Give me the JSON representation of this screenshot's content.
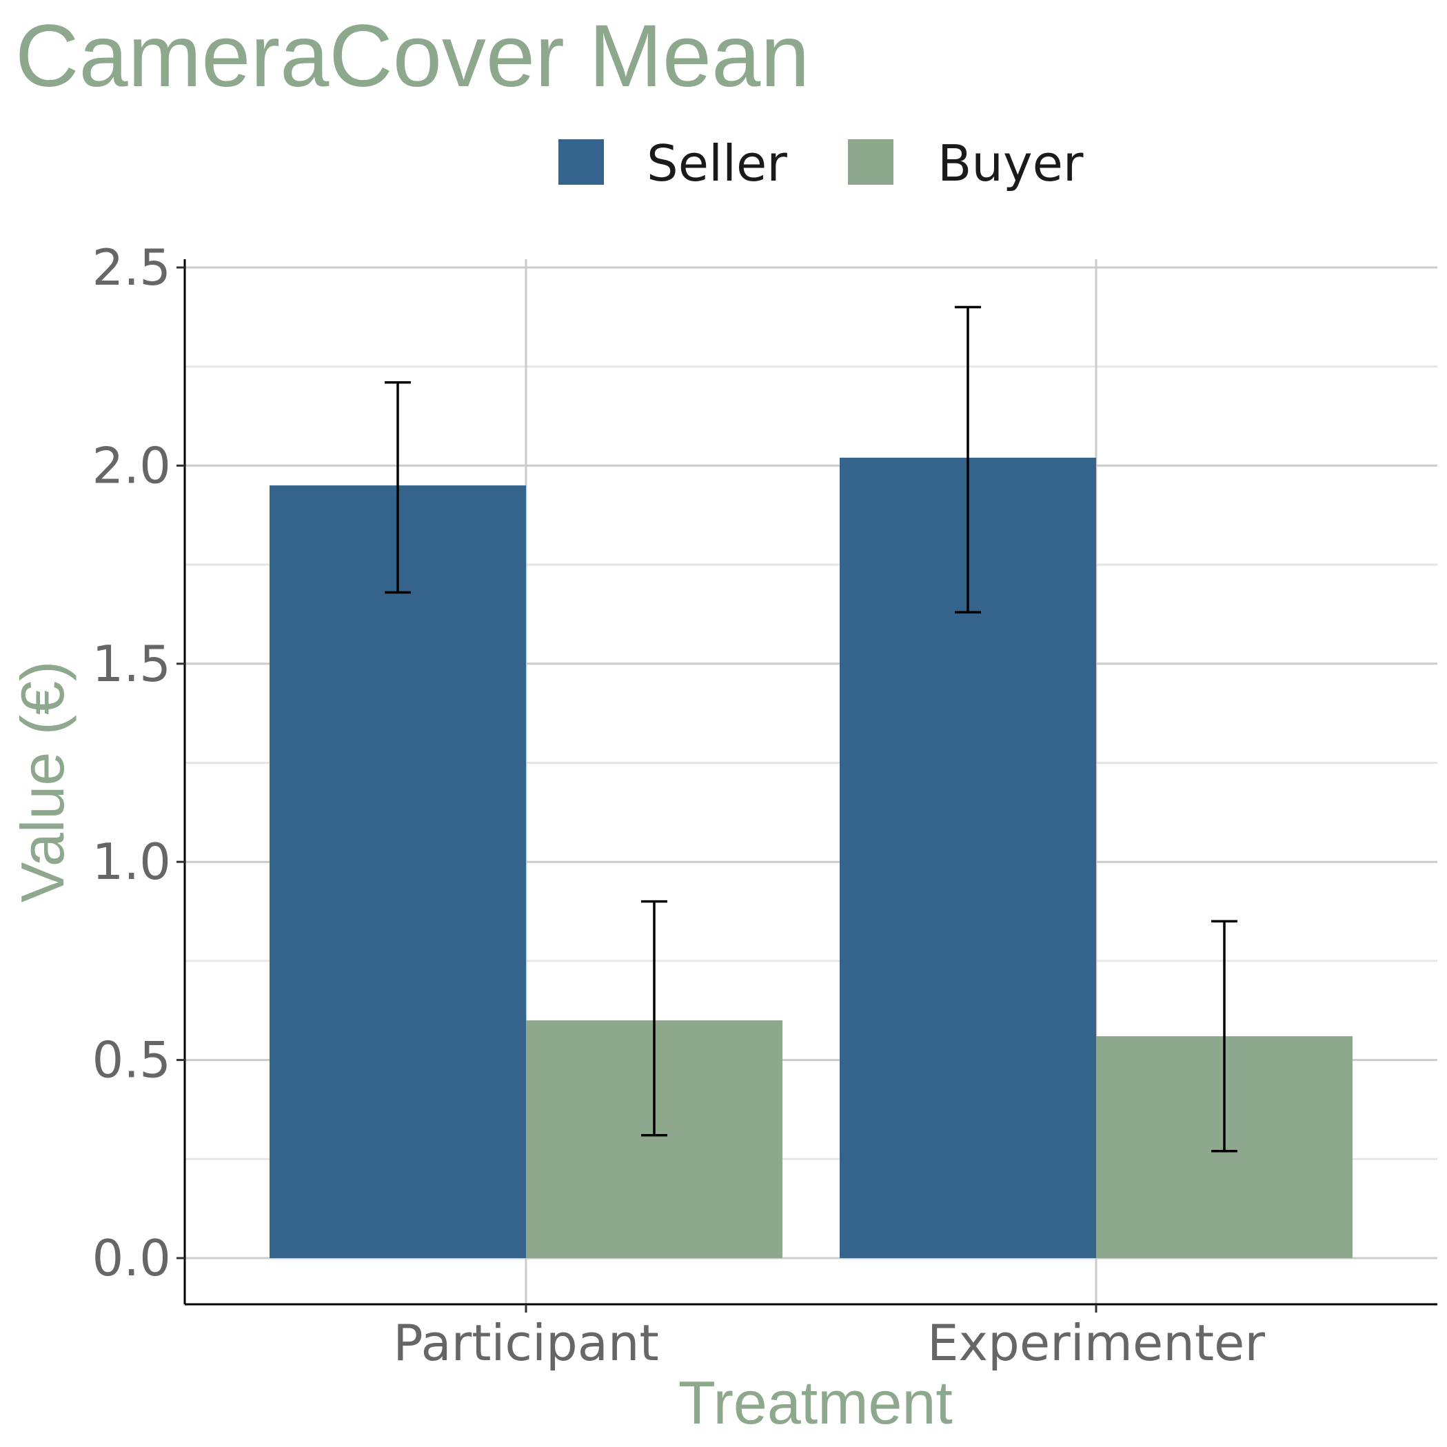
{
  "chart_data": {
    "type": "bar",
    "title": "CameraCover Mean",
    "xlabel": "Treatment",
    "ylabel": "Value (€)",
    "categories": [
      "Participant",
      "Experimenter"
    ],
    "series": [
      {
        "name": "Seller",
        "color": "#34648c",
        "values": [
          1.95,
          2.02
        ],
        "error_low": [
          1.68,
          1.63
        ],
        "error_high": [
          2.21,
          2.4
        ]
      },
      {
        "name": "Buyer",
        "color": "#8da88c",
        "values": [
          0.6,
          0.56
        ],
        "error_low": [
          0.31,
          0.27
        ],
        "error_high": [
          0.9,
          0.85
        ]
      }
    ],
    "yticks": [
      "0.0",
      "0.5",
      "1.0",
      "1.5",
      "2.0",
      "2.5"
    ],
    "ylim": [
      -0.12,
      2.53
    ],
    "grid": true,
    "legend_position": "top"
  }
}
